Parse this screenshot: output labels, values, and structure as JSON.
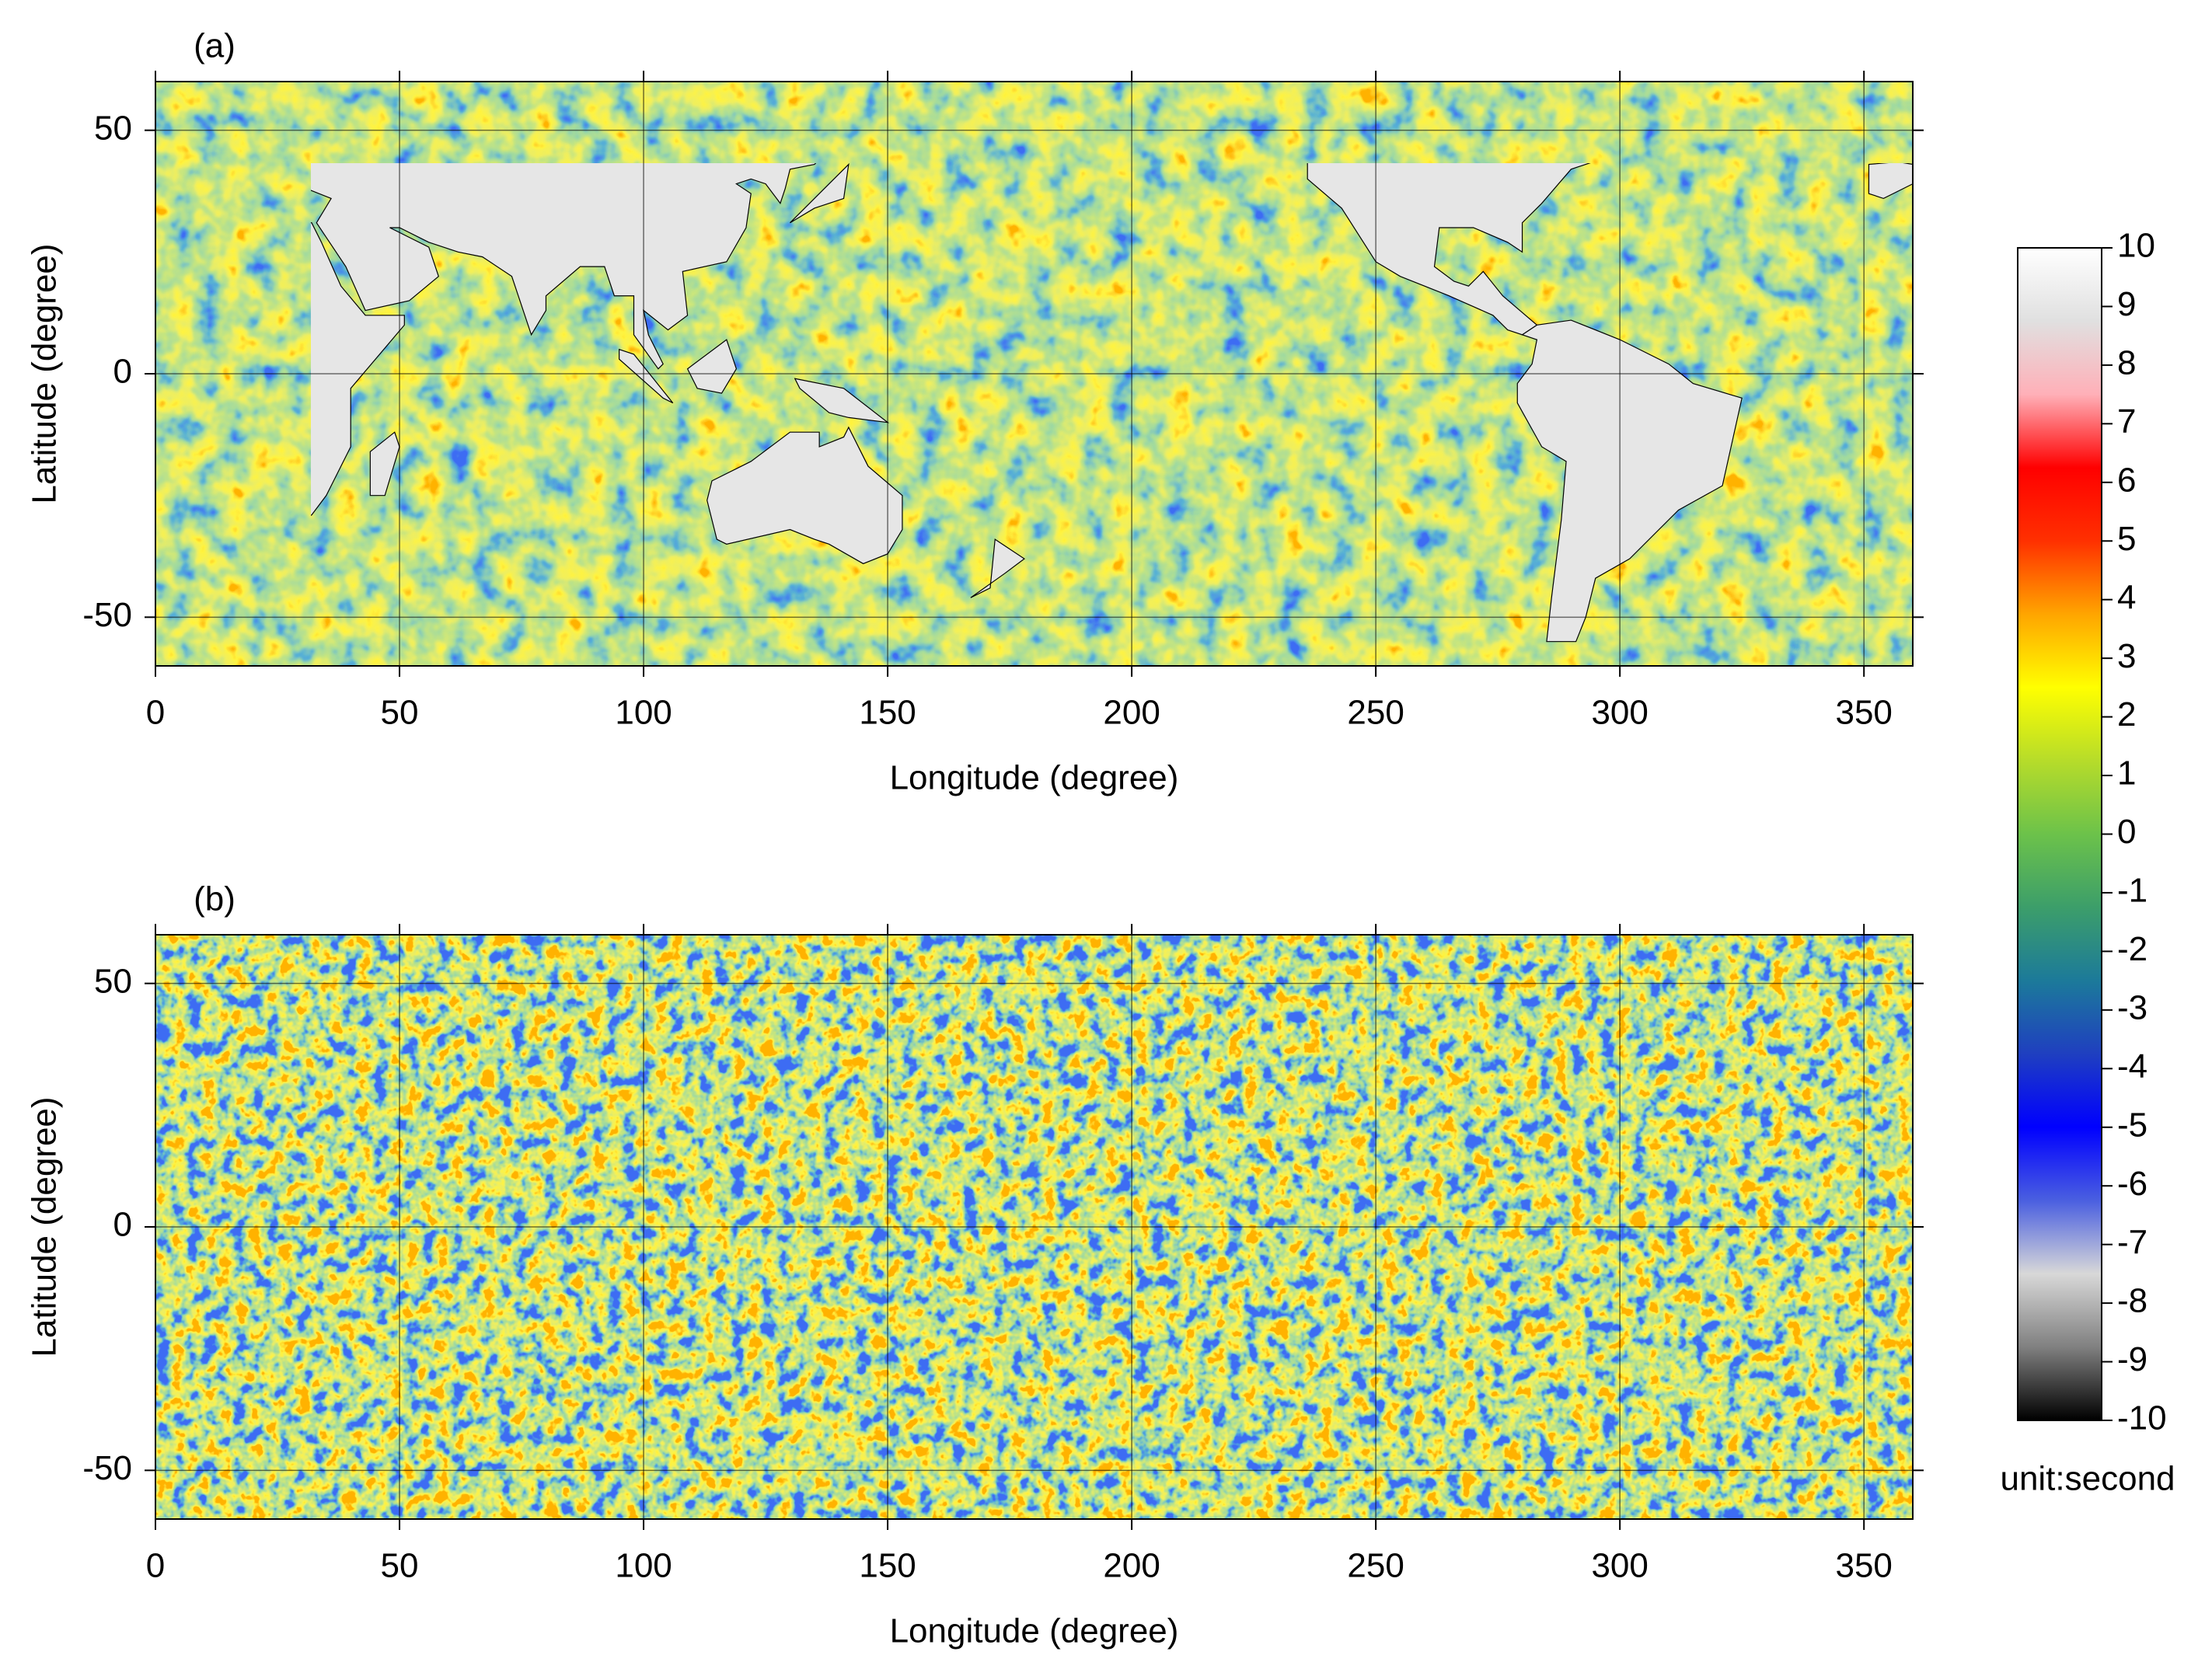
{
  "chart_data": [
    {
      "type": "heatmap",
      "title": "(a)",
      "xlabel": "Longitude (degree)",
      "ylabel": "Latitude (degree)",
      "xlim": [
        0,
        360
      ],
      "ylim": [
        -60,
        60
      ],
      "xticks": [
        0,
        50,
        100,
        150,
        200,
        250,
        300,
        350
      ],
      "yticks": [
        -50,
        0,
        50
      ],
      "grid": true
    },
    {
      "type": "heatmap",
      "title": "(b)",
      "xlabel": "Longitude (degree)",
      "ylabel": "Latitude (degree)",
      "xlim": [
        0,
        360
      ],
      "ylim": [
        -60,
        60
      ],
      "xticks": [
        0,
        50,
        100,
        150,
        200,
        250,
        300,
        350
      ],
      "yticks": [
        -50,
        0,
        50
      ],
      "grid": true
    },
    {
      "type": "colorbar",
      "label": "unit:second",
      "ylim": [
        -10,
        10
      ],
      "yticks": [
        -10,
        -9,
        -8,
        -7,
        -6,
        -5,
        -4,
        -3,
        -2,
        -1,
        0,
        1,
        2,
        3,
        4,
        5,
        6,
        7,
        8,
        9,
        10
      ],
      "colors": [
        "#000000",
        "#808080",
        "#d8d8d8",
        "#4a5fe0",
        "#0000ff",
        "#1f3fc0",
        "#1c7a9a",
        "#3c9e6a",
        "#6cc24a",
        "#b6dc2a",
        "#ffff00",
        "#ffa500",
        "#ff3000",
        "#ff0000",
        "#ffb0b8",
        "#e0e0e0",
        "#ffffff"
      ]
    }
  ]
}
